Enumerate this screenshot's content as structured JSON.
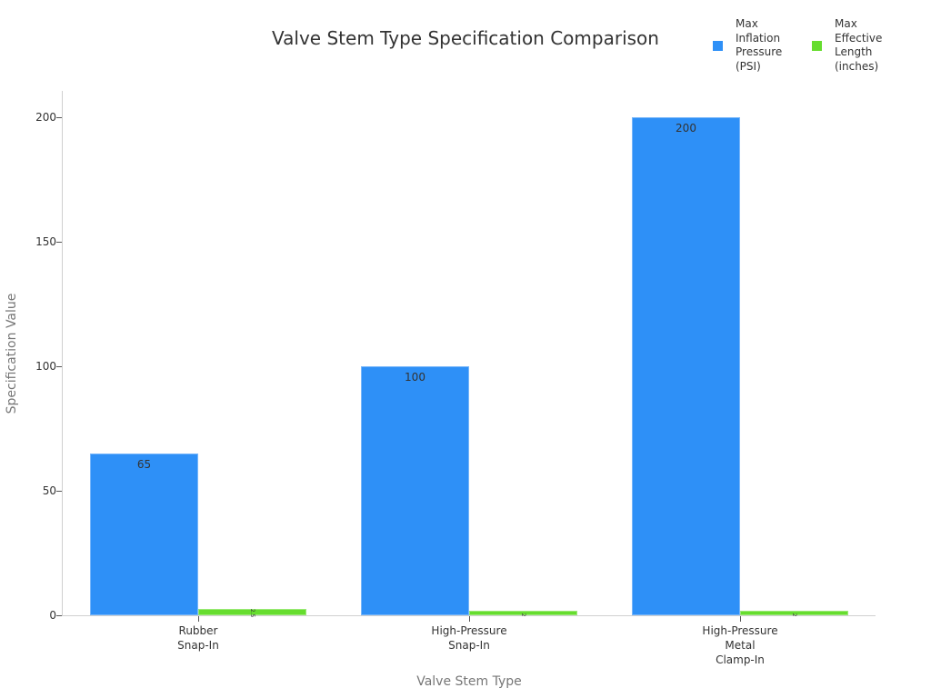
{
  "chart_data": {
    "type": "bar",
    "title": "Valve Stem Type Specification Comparison",
    "xlabel": "Valve Stem Type",
    "ylabel": "Specification Value",
    "ylim": [
      0,
      210
    ],
    "yticks": [
      0,
      50,
      100,
      150,
      200
    ],
    "categories": [
      "Rubber\nSnap-In",
      "High-Pressure\nSnap-In",
      "High-Pressure\nMetal\nClamp-In"
    ],
    "series": [
      {
        "name": "Max\nInflation\nPressure\n(PSI)",
        "color": "#2e90f7",
        "values": [
          65,
          100,
          200
        ]
      },
      {
        "name": "Max\nEffective\nLength\n(inches)",
        "color": "#66dd2e",
        "values": [
          2.5,
          2,
          2
        ]
      }
    ],
    "legend_position": "top-right",
    "grid": false
  }
}
